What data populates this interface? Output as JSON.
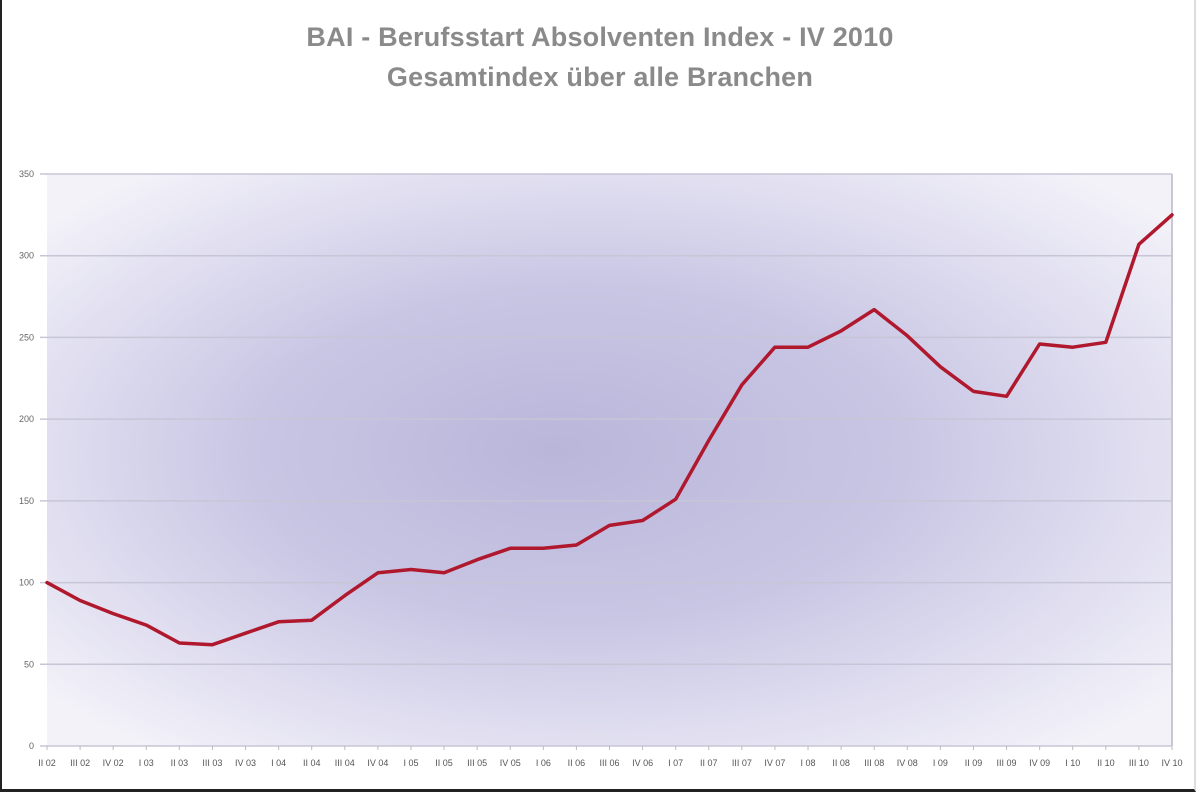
{
  "chart_data": {
    "type": "line",
    "title": "BAI - Berufsstart Absolventen Index - IV 2010",
    "subtitle": "Gesamtindex über alle Branchen",
    "xlabel": "",
    "ylabel": "",
    "ylim": [
      0,
      350
    ],
    "yticks": [
      0,
      50,
      100,
      150,
      200,
      250,
      300,
      350
    ],
    "grid": true,
    "legend": null,
    "categories": [
      "II 02",
      "III 02",
      "IV 02",
      "I 03",
      "II 03",
      "III 03",
      "IV 03",
      "I 04",
      "II 04",
      "III 04",
      "IV 04",
      "I 05",
      "II 05",
      "III 05",
      "IV 05",
      "I 06",
      "II 06",
      "III 06",
      "IV 06",
      "I 07",
      "II 07",
      "III 07",
      "IV 07",
      "I 08",
      "II 08",
      "III 08",
      "IV 08",
      "I 09",
      "II 09",
      "III 09",
      "IV 09",
      "I 10",
      "II 10",
      "III 10",
      "IV 10"
    ],
    "series": [
      {
        "name": "Gesamtindex",
        "color": "#b0182e",
        "values": [
          100,
          89,
          81,
          74,
          63,
          62,
          69,
          76,
          77,
          92,
          106,
          108,
          106,
          114,
          121,
          121,
          123,
          135,
          138,
          151,
          187,
          221,
          244,
          244,
          254,
          267,
          251,
          232,
          217,
          214,
          246,
          244,
          247,
          307,
          325
        ]
      }
    ]
  }
}
